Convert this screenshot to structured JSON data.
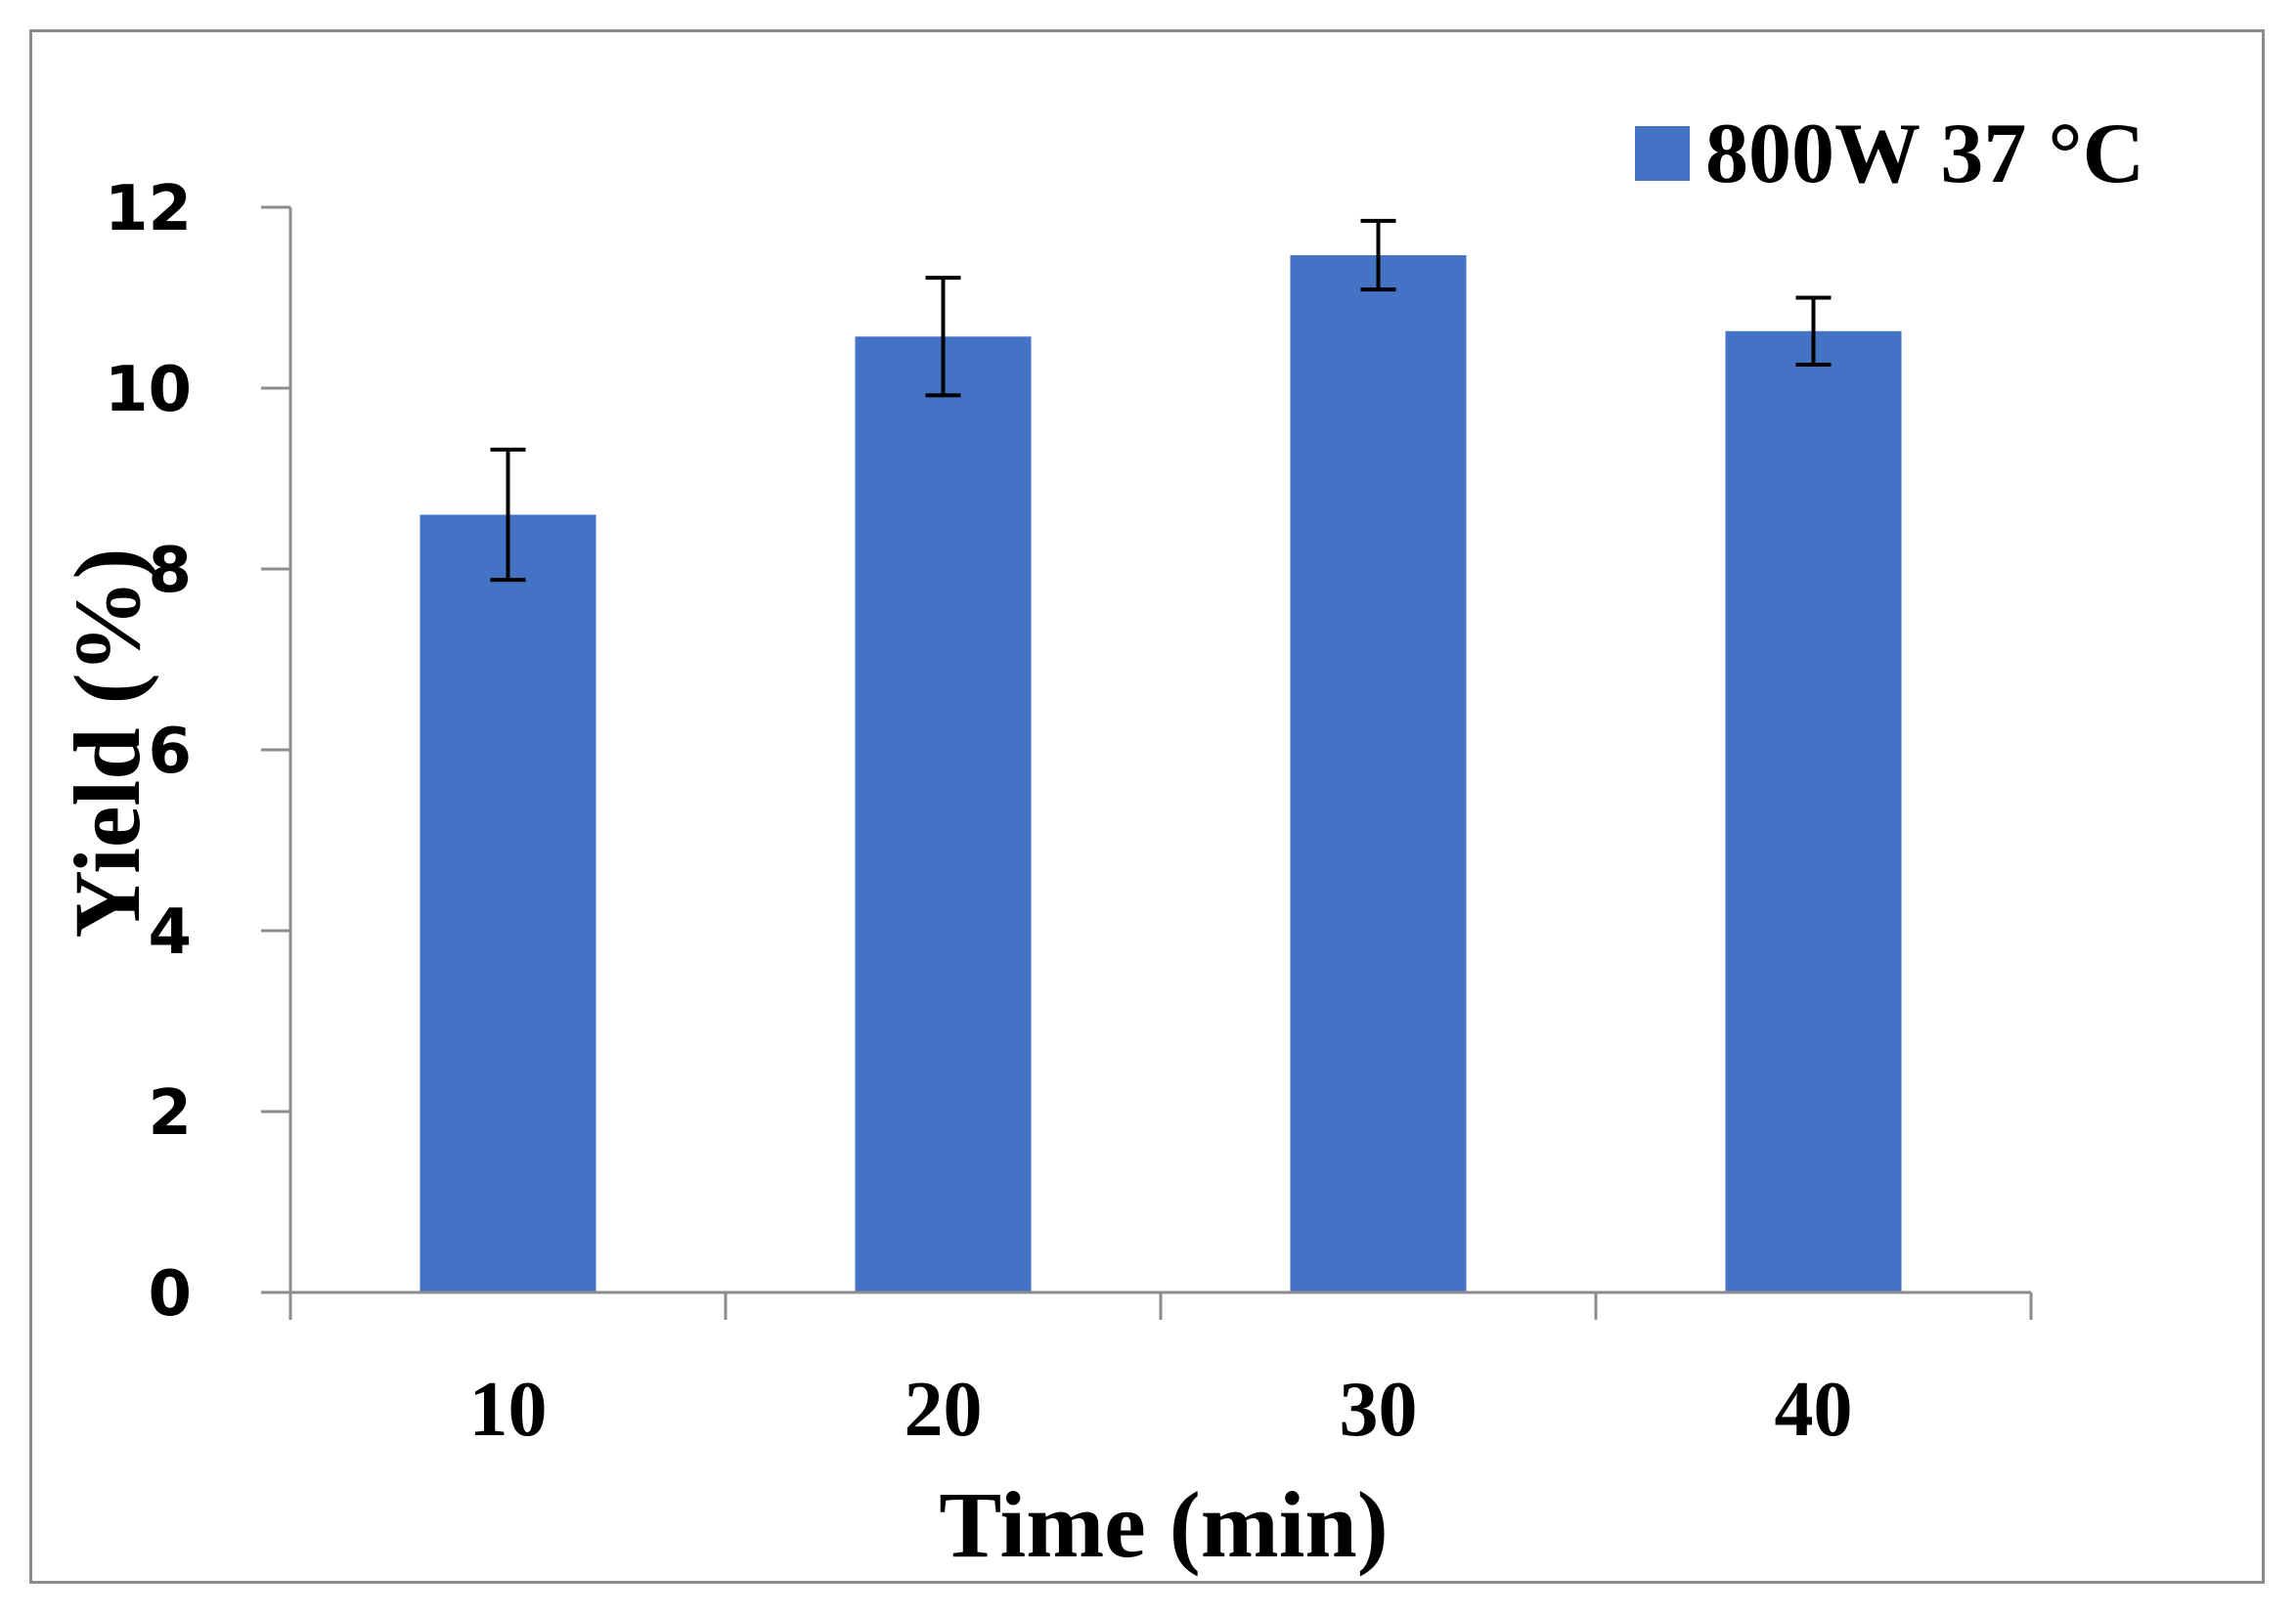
{
  "chart_data": {
    "type": "bar",
    "categories": [
      "10",
      "20",
      "30",
      "40"
    ],
    "series": [
      {
        "name": "800W 37 °C",
        "color": "#4472c4",
        "values": [
          8.6,
          10.57,
          11.47,
          10.63
        ],
        "errors": [
          0.72,
          0.65,
          0.38,
          0.37
        ]
      }
    ],
    "title": "",
    "xlabel": "Time (min)",
    "ylabel": "Yield (%)",
    "ylim": [
      0,
      12
    ],
    "yticks": [
      0,
      2,
      4,
      6,
      8,
      10,
      12
    ],
    "grid": false,
    "legend_position": "top-right",
    "error_bars": true
  }
}
